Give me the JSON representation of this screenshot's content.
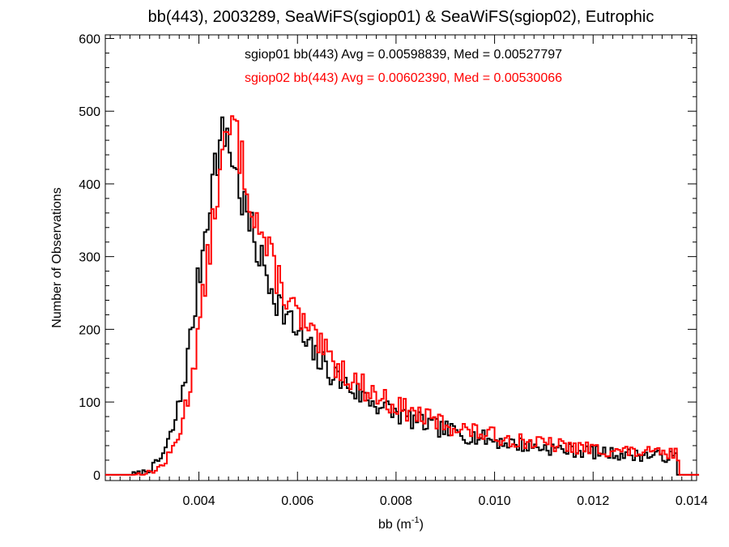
{
  "chart_data": {
    "type": "histogram-step",
    "title": "bb(443), 2003289, SeaWiFS(sgiop01) & SeaWiFS(sgiop02), Eutrophic",
    "xlabel": "bb (m",
    "xlabel_sup": "-1",
    "xlabel_close": ")",
    "ylabel": "Number of Observations",
    "xlim": [
      0.0021,
      0.0141
    ],
    "ylim": [
      -8,
      605
    ],
    "x_ticks": [
      0.004,
      0.006,
      0.008,
      0.01,
      0.012,
      0.014
    ],
    "x_tick_labels": [
      "0.004",
      "0.006",
      "0.008",
      "0.010",
      "0.012",
      "0.014"
    ],
    "y_ticks": [
      0,
      100,
      200,
      300,
      400,
      500,
      600
    ],
    "y_tick_labels": [
      "0",
      "100",
      "200",
      "300",
      "400",
      "500",
      "600"
    ],
    "grid": false,
    "annotations": [
      {
        "text": "sgiop01 bb(443) Avg = 0.00598839, Med = 0.00527797",
        "color": "#000000"
      },
      {
        "text": "sgiop02 bb(443) Avg = 0.00602390, Med = 0.00530066",
        "color": "#ff0000"
      }
    ],
    "series": [
      {
        "color": "#000000",
        "shape": {
          "start": 0.0026,
          "end": 0.01365,
          "peak_x": 0.00455,
          "peak_y": 470,
          "rise_width": 0.00055,
          "tail_amp": 430,
          "tail_scale": 0.0018,
          "floor": 18,
          "seed": 7
        }
      },
      {
        "color": "#ff0000",
        "shape": {
          "start": 0.00265,
          "end": 0.0137,
          "peak_x": 0.0047,
          "peak_y": 478,
          "rise_width": 0.00055,
          "tail_amp": 440,
          "tail_scale": 0.00185,
          "floor": 20,
          "seed": 13
        }
      }
    ]
  }
}
